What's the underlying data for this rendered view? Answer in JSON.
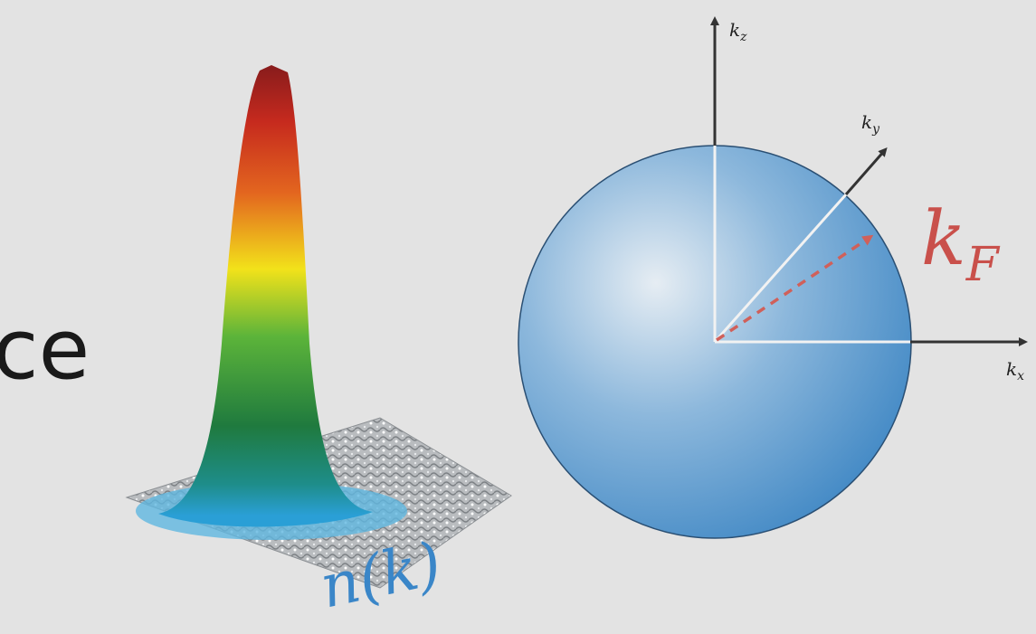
{
  "fragment": "ce",
  "density_label": "n(k)",
  "axes": {
    "kz": {
      "base": "k",
      "sub": "z"
    },
    "ky": {
      "base": "k",
      "sub": "y"
    },
    "kx": {
      "base": "k",
      "sub": "x"
    }
  },
  "fermi": {
    "base": "k",
    "sub": "F"
  }
}
